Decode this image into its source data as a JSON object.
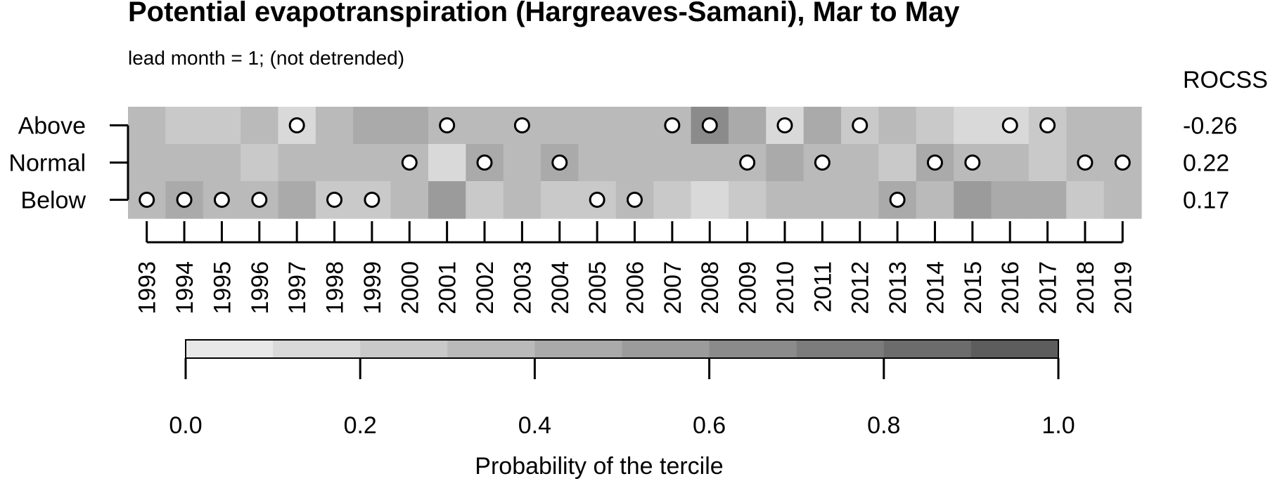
{
  "chart_data": {
    "type": "heatmap",
    "title": "Potential evapotranspiration (Hargreaves-Samani), Mar to May",
    "subtitle": "lead month = 1; (not detrended)",
    "x": [
      1993,
      1994,
      1995,
      1996,
      1997,
      1998,
      1999,
      2000,
      2001,
      2002,
      2003,
      2004,
      2005,
      2006,
      2007,
      2008,
      2009,
      2010,
      2011,
      2012,
      2013,
      2014,
      2015,
      2016,
      2017,
      2018,
      2019
    ],
    "y": [
      "Above",
      "Normal",
      "Below"
    ],
    "rocss_label": "ROCSS",
    "rocss": [
      "-0.26",
      "0.22",
      "0.17"
    ],
    "probabilities": {
      "Above": [
        0.35,
        0.25,
        0.25,
        0.35,
        0.15,
        0.35,
        0.45,
        0.45,
        0.35,
        0.35,
        0.35,
        0.35,
        0.35,
        0.35,
        0.35,
        0.65,
        0.45,
        0.15,
        0.45,
        0.25,
        0.35,
        0.25,
        0.15,
        0.15,
        0.25,
        0.35,
        0.35
      ],
      "Normal": [
        0.35,
        0.35,
        0.35,
        0.25,
        0.35,
        0.35,
        0.35,
        0.35,
        0.15,
        0.45,
        0.35,
        0.45,
        0.35,
        0.35,
        0.35,
        0.35,
        0.35,
        0.45,
        0.35,
        0.35,
        0.25,
        0.45,
        0.35,
        0.35,
        0.25,
        0.35,
        0.35
      ],
      "Below": [
        0.35,
        0.45,
        0.35,
        0.35,
        0.45,
        0.25,
        0.25,
        0.35,
        0.55,
        0.25,
        0.35,
        0.25,
        0.25,
        0.35,
        0.25,
        0.15,
        0.25,
        0.35,
        0.35,
        0.35,
        0.45,
        0.35,
        0.55,
        0.45,
        0.45,
        0.25,
        0.35
      ]
    },
    "observed": [
      "Below",
      "Below",
      "Below",
      "Below",
      "Above",
      "Below",
      "Below",
      "Normal",
      "Above",
      "Normal",
      "Above",
      "Normal",
      "Below",
      "Below",
      "Above",
      "Above",
      "Normal",
      "Above",
      "Normal",
      "Above",
      "Below",
      "Normal",
      "Normal",
      "Above",
      "Above",
      "Normal",
      "Normal"
    ],
    "colorbar": {
      "label": "Probability of the tercile",
      "ticks": [
        "0.0",
        "0.2",
        "0.4",
        "0.6",
        "0.8",
        "1.0"
      ],
      "range": [
        0,
        1
      ],
      "bins": 10
    }
  }
}
